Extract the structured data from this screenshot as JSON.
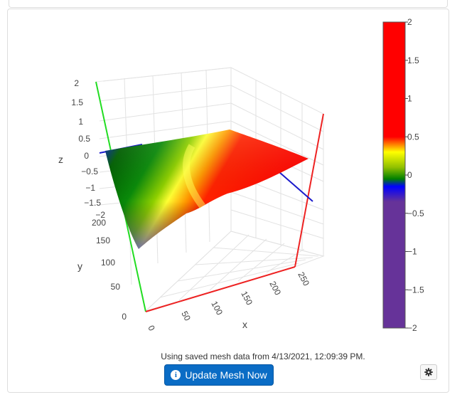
{
  "status_text": "Using saved mesh data from 4/13/2021, 12:09:39 PM.",
  "update_button": {
    "label": "Update Mesh Now",
    "icon": "info-circle-icon"
  },
  "settings_button": {
    "icon": "gear-icon"
  },
  "chart_data": {
    "type": "surface3d",
    "axes": {
      "x": {
        "title": "x",
        "ticks": [
          "0",
          "50",
          "100",
          "150",
          "200",
          "250"
        ],
        "color": "#ff0000"
      },
      "y": {
        "title": "y",
        "ticks": [
          "0",
          "50",
          "100",
          "150",
          "200"
        ],
        "color": "#0000ff"
      },
      "z": {
        "title": "z",
        "ticks": [
          "2",
          "1.5",
          "1",
          "0.5",
          "0",
          "−0.5",
          "−1",
          "−1.5",
          "−2"
        ],
        "color": "#00ff00"
      }
    },
    "surface_colors": {
      "negative": "#0000ff",
      "low": "#008000",
      "mid": "#ffff00",
      "high": "#ff0000"
    },
    "colorbar": {
      "ticks": [
        "2",
        "1.5",
        "1",
        "0.5",
        "0",
        "−0.5",
        "−1",
        "−1.5",
        "−2"
      ],
      "range": [
        -2,
        2
      ],
      "stops": [
        {
          "value": 2,
          "color": "#ff0000"
        },
        {
          "value": 0.5,
          "color": "#ff0000"
        },
        {
          "value": 0.3,
          "color": "#ffff00"
        },
        {
          "value": 0.1,
          "color": "#90c000"
        },
        {
          "value": -0.05,
          "color": "#008000"
        },
        {
          "value": -0.15,
          "color": "#0000ff"
        },
        {
          "value": -0.35,
          "color": "#663399"
        },
        {
          "value": -2,
          "color": "#663399"
        }
      ]
    }
  }
}
